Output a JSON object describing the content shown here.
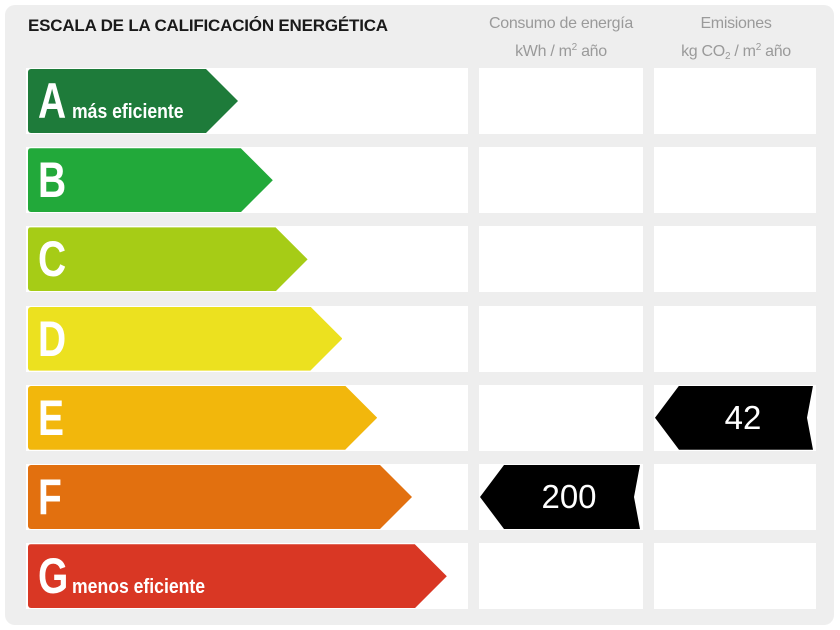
{
  "title": "ESCALA DE LA CALIFICACIÓN ENERGÉTICA",
  "columns": {
    "energy": {
      "line1": "Consumo de energía",
      "unit_prefix": "kWh / m",
      "unit_exp": "2",
      "unit_suffix": " año"
    },
    "emissions": {
      "line1": "Emisiones",
      "unit_prefix": "kg CO",
      "unit_sub": "2",
      "unit_mid": " / m",
      "unit_exp": "2",
      "unit_suffix": " año"
    }
  },
  "ratings": [
    {
      "letter": "A",
      "sublabel": "más eficiente",
      "color": "#1e7b3a"
    },
    {
      "letter": "B",
      "sublabel": "",
      "color": "#22a93a"
    },
    {
      "letter": "C",
      "sublabel": "",
      "color": "#a6cc16"
    },
    {
      "letter": "D",
      "sublabel": "",
      "color": "#ece11f"
    },
    {
      "letter": "E",
      "sublabel": "",
      "color": "#f2b70c"
    },
    {
      "letter": "F",
      "sublabel": "",
      "color": "#e2700f"
    },
    {
      "letter": "G",
      "sublabel": "menos eficiente",
      "color": "#d93724"
    }
  ],
  "energy_rating": {
    "letter": "F",
    "value": "200"
  },
  "emissions_rating": {
    "letter": "E",
    "value": "42"
  }
}
